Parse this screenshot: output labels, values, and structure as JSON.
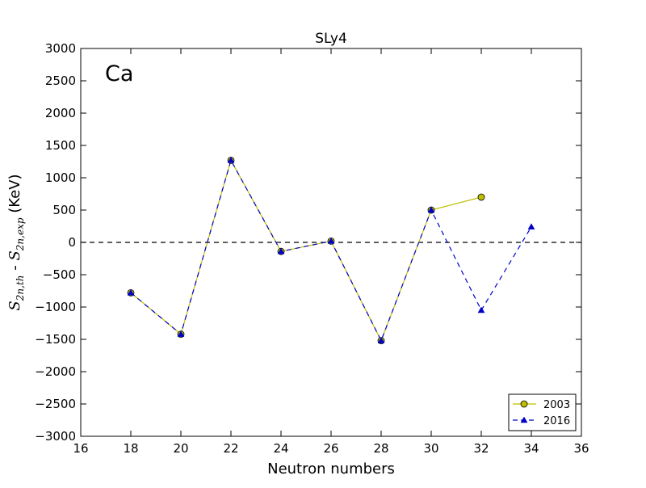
{
  "chart_data": {
    "type": "line",
    "title": "SLy4",
    "annotation": "Ca",
    "xlabel": "Neutron numbers",
    "ylabel": {
      "symbol": "S",
      "sub_th": "2n,th",
      "separator": " - ",
      "sub_exp": "2n,exp",
      "unit": " (KeV)"
    },
    "xlim": [
      16,
      36
    ],
    "ylim": [
      -3000,
      3000
    ],
    "xticks": [
      16,
      18,
      20,
      22,
      24,
      26,
      28,
      30,
      32,
      34,
      36
    ],
    "yticks": [
      3000,
      2500,
      2000,
      1500,
      1000,
      500,
      0,
      -500,
      -1000,
      -1500,
      -2000,
      -2500,
      -3000
    ],
    "xtick_labels": [
      "16",
      "18",
      "20",
      "22",
      "24",
      "26",
      "28",
      "30",
      "32",
      "34",
      "36"
    ],
    "ytick_labels": [
      "3000",
      "2500",
      "2000",
      "1500",
      "1000",
      "500",
      "0",
      "−500",
      "−1000",
      "−1500",
      "−2000",
      "−2500",
      "−3000"
    ],
    "reference_line": {
      "y": 0,
      "style": "dashed",
      "color": "#000000"
    },
    "series": [
      {
        "name": "2003",
        "color": "#bfbf00",
        "marker": "circle",
        "linestyle": "solid",
        "x": [
          18,
          20,
          22,
          24,
          26,
          28,
          30,
          32
        ],
        "y": [
          -780,
          -1420,
          1270,
          -140,
          20,
          -1520,
          500,
          700
        ]
      },
      {
        "name": "2016",
        "color": "#0000cc",
        "marker": "triangle",
        "linestyle": "dashed",
        "x": [
          18,
          20,
          22,
          24,
          26,
          28,
          30,
          32,
          34
        ],
        "y": [
          -780,
          -1420,
          1270,
          -140,
          20,
          -1520,
          500,
          -1050,
          240
        ]
      }
    ],
    "grid": false,
    "legend_position": "lower-right"
  }
}
